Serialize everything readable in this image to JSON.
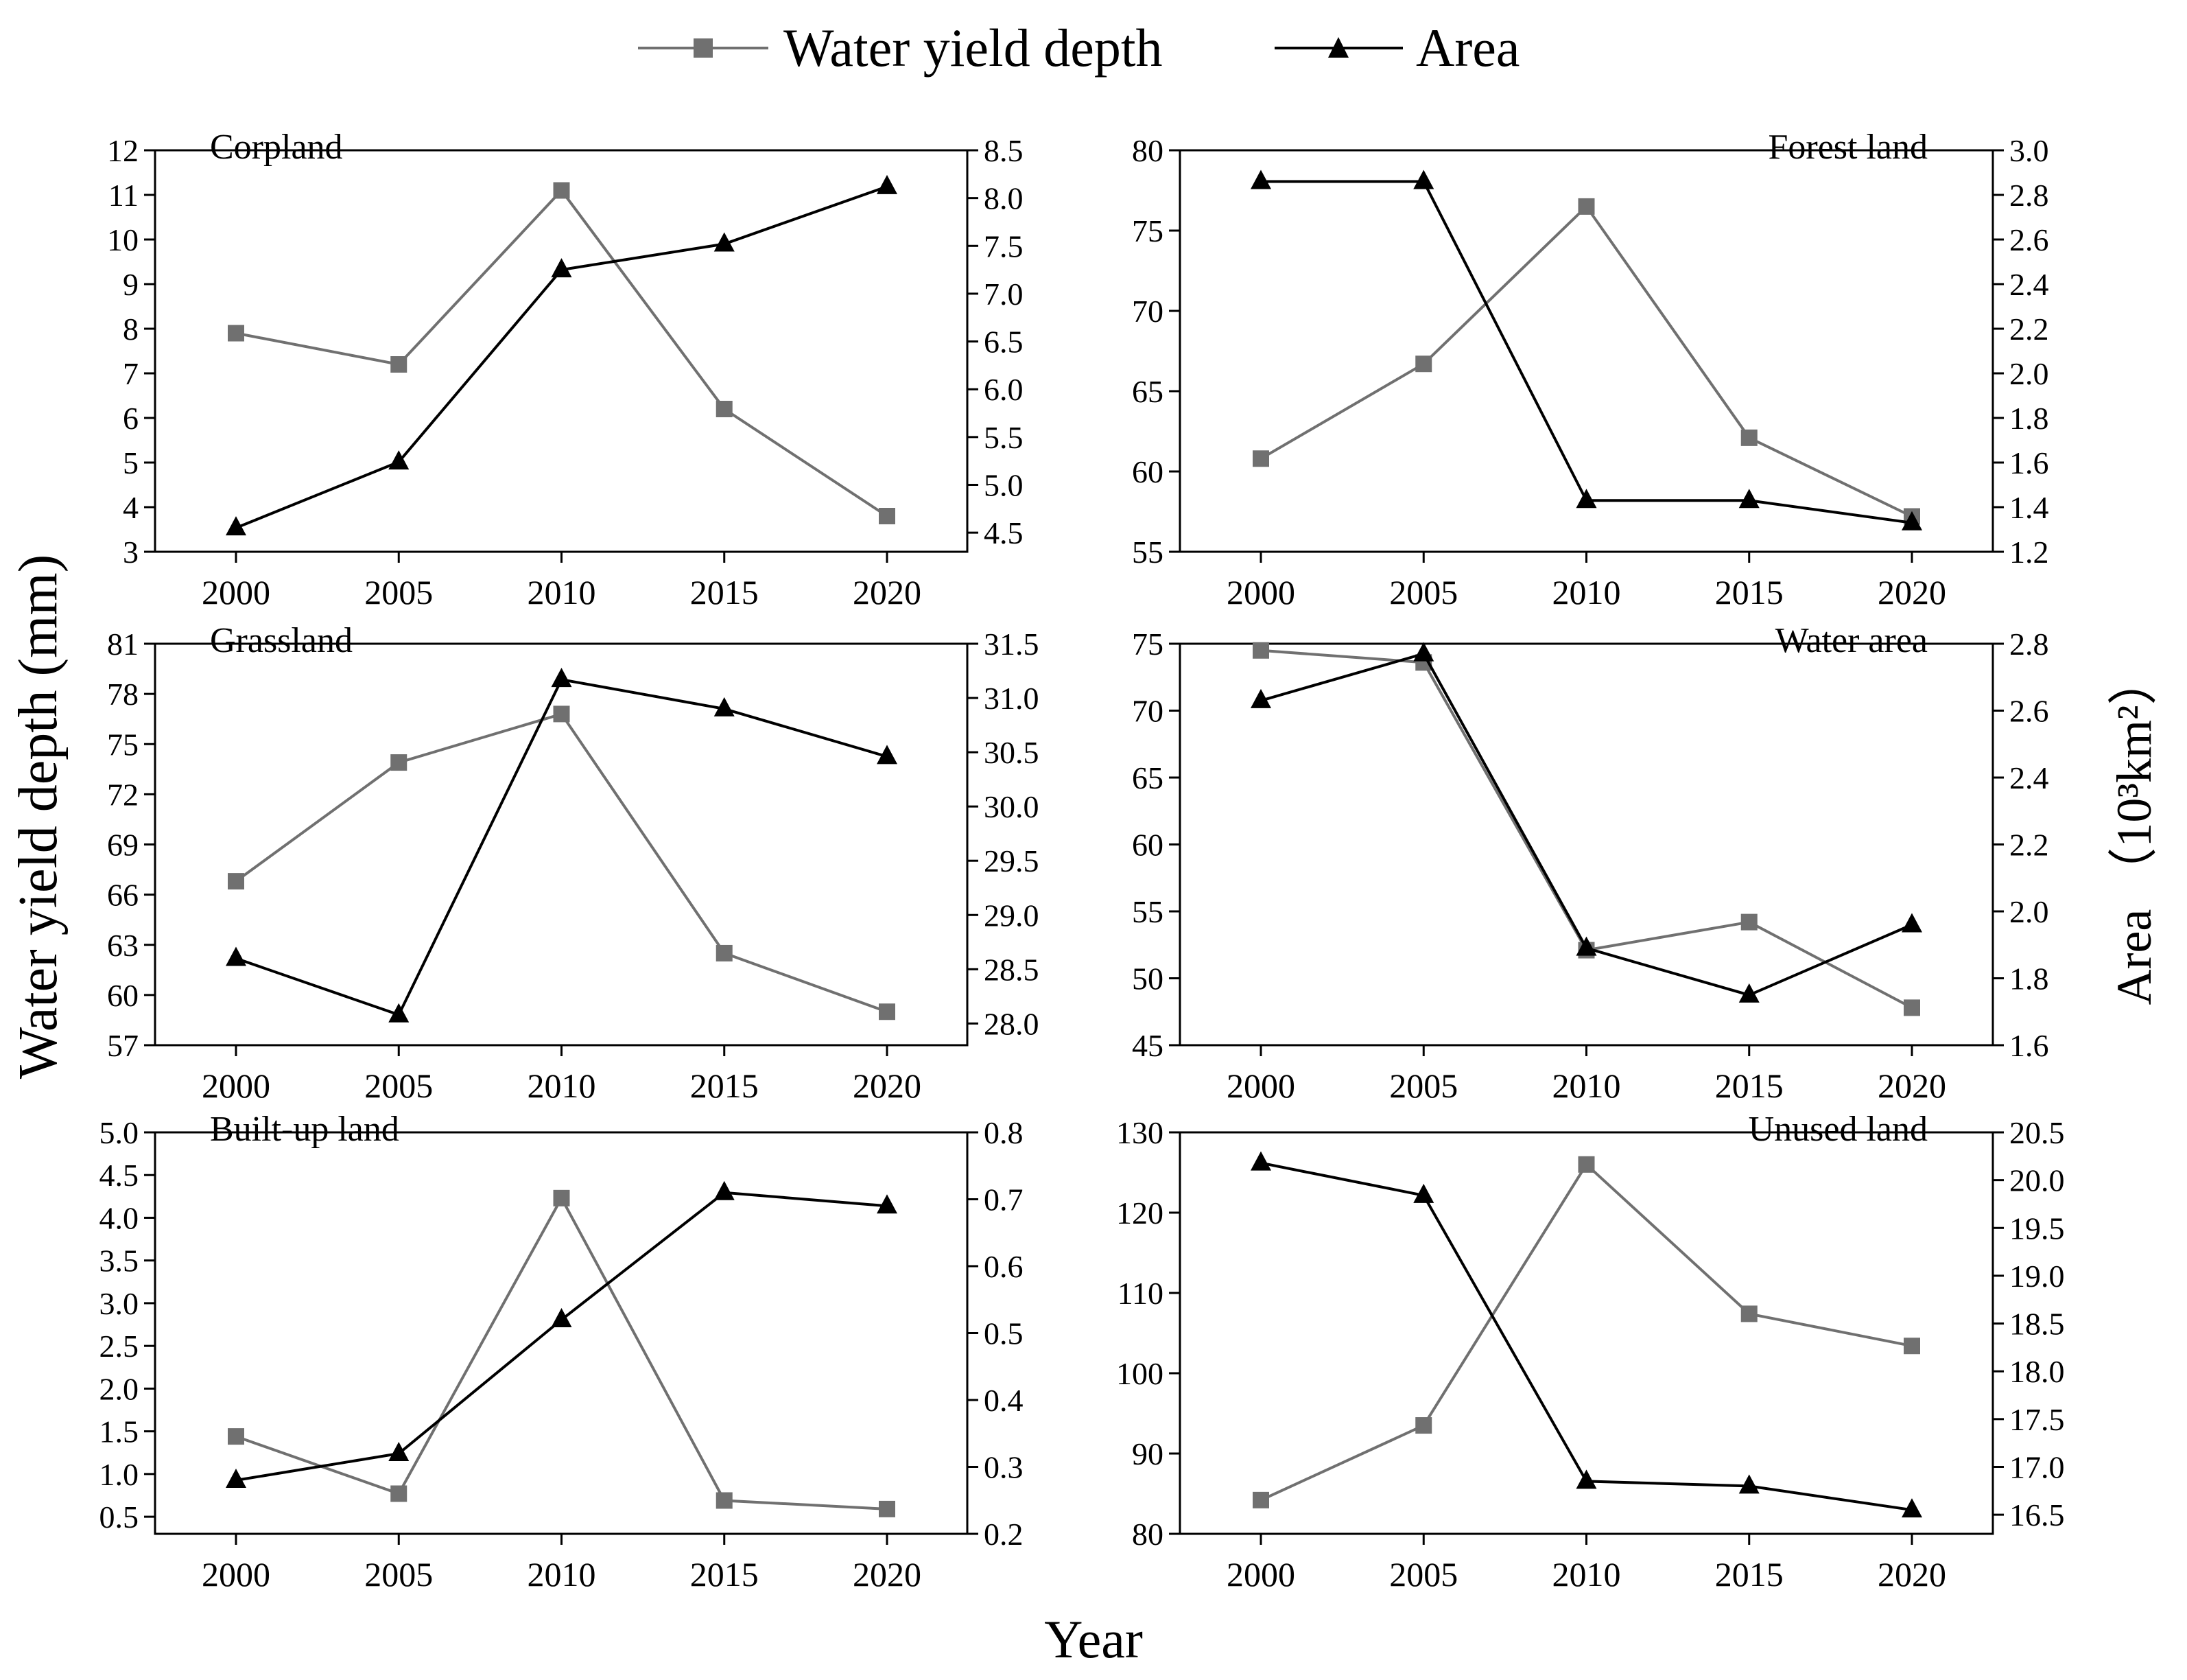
{
  "legend": [
    {
      "name": "Water yield depth",
      "marker": "square",
      "color": "#707070"
    },
    {
      "name": "Area",
      "marker": "triangle",
      "color": "#000000"
    }
  ],
  "y_left_label": "Water yield depth (mm)",
  "y_right_label": "Area （10³km²）",
  "x_label": "Year",
  "chart_data": [
    {
      "type": "line",
      "title": "Corpland",
      "title_align": "left",
      "x": [
        "2000",
        "2005",
        "2010",
        "2015",
        "2020"
      ],
      "series": [
        {
          "name": "Water yield depth",
          "axis": "left",
          "values": [
            7.9,
            7.2,
            11.1,
            6.2,
            3.8
          ]
        },
        {
          "name": "Area",
          "axis": "right",
          "values": [
            4.55,
            5.24,
            7.25,
            7.52,
            8.12
          ]
        }
      ],
      "ylim_left": [
        3,
        12
      ],
      "yticks_left": [
        "3",
        "4",
        "5",
        "6",
        "7",
        "8",
        "9",
        "10",
        "11",
        "12"
      ],
      "ylim_right": [
        4.3,
        8.5
      ],
      "yticks_right": [
        "4.5",
        "5.0",
        "5.5",
        "6.0",
        "6.5",
        "7.0",
        "7.5",
        "8.0",
        "8.5"
      ]
    },
    {
      "type": "line",
      "title": "Forest land",
      "title_align": "right",
      "x": [
        "2000",
        "2005",
        "2010",
        "2015",
        "2020"
      ],
      "series": [
        {
          "name": "Water yield depth",
          "axis": "left",
          "values": [
            60.8,
            66.7,
            76.5,
            62.1,
            57.2
          ]
        },
        {
          "name": "Area",
          "axis": "right",
          "values": [
            2.86,
            2.86,
            1.43,
            1.43,
            1.33
          ]
        }
      ],
      "ylim_left": [
        55,
        80
      ],
      "yticks_left": [
        "55",
        "60",
        "65",
        "70",
        "75",
        "80"
      ],
      "ylim_right": [
        1.2,
        3.0
      ],
      "yticks_right": [
        "1.2",
        "1.4",
        "1.6",
        "1.8",
        "2.0",
        "2.2",
        "2.4",
        "2.6",
        "2.8",
        "3.0"
      ]
    },
    {
      "type": "line",
      "title": "Grassland",
      "title_align": "left",
      "x": [
        "2000",
        "2005",
        "2010",
        "2015",
        "2020"
      ],
      "series": [
        {
          "name": "Water yield depth",
          "axis": "left",
          "values": [
            66.8,
            73.9,
            76.8,
            62.5,
            59.0
          ]
        },
        {
          "name": "Area",
          "axis": "right",
          "values": [
            28.6,
            28.08,
            31.17,
            30.9,
            30.46
          ]
        }
      ],
      "ylim_left": [
        57,
        81
      ],
      "yticks_left": [
        "57",
        "60",
        "63",
        "66",
        "69",
        "72",
        "75",
        "78",
        "81"
      ],
      "ylim_right": [
        27.8,
        31.5
      ],
      "yticks_right": [
        "28.0",
        "28.5",
        "29.0",
        "29.5",
        "30.0",
        "30.5",
        "31.0",
        "31.5"
      ]
    },
    {
      "type": "line",
      "title": "Water area",
      "title_align": "right",
      "x": [
        "2000",
        "2005",
        "2010",
        "2015",
        "2020"
      ],
      "series": [
        {
          "name": "Water yield depth",
          "axis": "left",
          "values": [
            74.5,
            73.6,
            52.1,
            54.2,
            47.8
          ]
        },
        {
          "name": "Area",
          "axis": "right",
          "values": [
            2.63,
            2.77,
            1.89,
            1.75,
            1.96
          ]
        }
      ],
      "ylim_left": [
        45,
        75
      ],
      "yticks_left": [
        "45",
        "50",
        "55",
        "60",
        "65",
        "70",
        "75"
      ],
      "ylim_right": [
        1.6,
        2.8
      ],
      "yticks_right": [
        "1.6",
        "1.8",
        "2.0",
        "2.2",
        "2.4",
        "2.6",
        "2.8"
      ]
    },
    {
      "type": "line",
      "title": "Built-up land",
      "title_align": "left",
      "x": [
        "2000",
        "2005",
        "2010",
        "2015",
        "2020"
      ],
      "series": [
        {
          "name": "Water yield depth",
          "axis": "left",
          "values": [
            1.44,
            0.77,
            4.23,
            0.69,
            0.59
          ]
        },
        {
          "name": "Area",
          "axis": "right",
          "values": [
            0.28,
            0.32,
            0.52,
            0.71,
            0.69
          ]
        }
      ],
      "ylim_left": [
        0.3,
        5.0
      ],
      "yticks_left": [
        "0.5",
        "1.0",
        "1.5",
        "2.0",
        "2.5",
        "3.0",
        "3.5",
        "4.0",
        "4.5",
        "5.0"
      ],
      "ylim_right": [
        0.2,
        0.8
      ],
      "yticks_right": [
        "0.2",
        "0.3",
        "0.4",
        "0.5",
        "0.6",
        "0.7",
        "0.8"
      ]
    },
    {
      "type": "line",
      "title": "Unused land",
      "title_align": "right",
      "x": [
        "2000",
        "2005",
        "2010",
        "2015",
        "2020"
      ],
      "series": [
        {
          "name": "Water yield depth",
          "axis": "left",
          "values": [
            84.2,
            93.5,
            126.0,
            107.4,
            103.4
          ]
        },
        {
          "name": "Area",
          "axis": "right",
          "values": [
            20.18,
            19.84,
            16.85,
            16.8,
            16.55
          ]
        }
      ],
      "ylim_left": [
        80,
        130
      ],
      "yticks_left": [
        "80",
        "90",
        "100",
        "110",
        "120",
        "130"
      ],
      "ylim_right": [
        16.3,
        20.5
      ],
      "yticks_right": [
        "16.5",
        "17.0",
        "17.5",
        "18.0",
        "18.5",
        "19.0",
        "19.5",
        "20.0",
        "20.5"
      ]
    }
  ]
}
